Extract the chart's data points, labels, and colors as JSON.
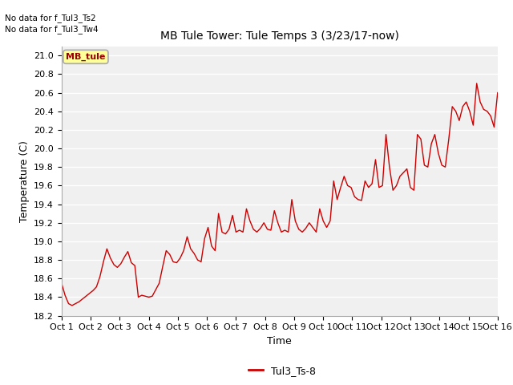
{
  "title": "MB Tule Tower: Tule Temps 3 (3/23/17-now)",
  "xlabel": "Time",
  "ylabel": "Temperature (C)",
  "no_data_text": [
    "No data for f_Tul3_Ts2",
    "No data for f_Tul3_Tw4"
  ],
  "legend_box_label": "MB_tule",
  "legend_box_color": "#ffff99",
  "legend_box_border": "#aaaaaa",
  "line_label": "Tul3_Ts-8",
  "line_color": "#cc0000",
  "plot_bg_color": "#f0f0f0",
  "fig_bg_color": "#ffffff",
  "grid_color": "#ffffff",
  "ylim": [
    18.2,
    21.1
  ],
  "yticks": [
    18.2,
    18.4,
    18.6,
    18.8,
    19.0,
    19.2,
    19.4,
    19.6,
    19.8,
    20.0,
    20.2,
    20.4,
    20.6,
    20.8,
    21.0
  ],
  "xtick_labels": [
    "Oct 1",
    "Oct 2",
    "Oct 3",
    "Oct 4",
    "Oct 5",
    "Oct 6",
    "Oct 7",
    "Oct 8",
    "Oct 9",
    "Oct 10",
    "Oct 11",
    "Oct 12",
    "Oct 13",
    "Oct 14",
    "Oct 15",
    "Oct 16"
  ],
  "x_values": [
    1,
    2,
    3,
    4,
    5,
    6,
    7,
    8,
    9,
    10,
    11,
    12,
    13,
    14,
    15,
    16
  ],
  "y_values": [
    18.55,
    18.42,
    18.33,
    18.31,
    18.33,
    18.35,
    18.38,
    18.41,
    18.44,
    18.47,
    18.51,
    18.62,
    18.78,
    18.92,
    18.82,
    18.75,
    18.72,
    18.76,
    18.83,
    18.89,
    18.77,
    18.74,
    18.4,
    18.42,
    18.41,
    18.4,
    18.41,
    18.48,
    18.55,
    18.73,
    18.9,
    18.86,
    18.78,
    18.77,
    18.82,
    18.9,
    19.05,
    18.92,
    18.87,
    18.8,
    18.78,
    19.03,
    19.15,
    18.95,
    18.9,
    19.3,
    19.1,
    19.08,
    19.13,
    19.28,
    19.1,
    19.12,
    19.1,
    19.35,
    19.22,
    19.13,
    19.1,
    19.14,
    19.2,
    19.13,
    19.12,
    19.33,
    19.2,
    19.1,
    19.12,
    19.1,
    19.45,
    19.22,
    19.13,
    19.1,
    19.14,
    19.2,
    19.15,
    19.1,
    19.35,
    19.22,
    19.15,
    19.22,
    19.65,
    19.45,
    19.58,
    19.7,
    19.6,
    19.58,
    19.48,
    19.45,
    19.44,
    19.65,
    19.58,
    19.62,
    19.88,
    19.58,
    19.6,
    20.15,
    19.8,
    19.55,
    19.6,
    19.7,
    19.74,
    19.78,
    19.58,
    19.55,
    20.15,
    20.1,
    19.82,
    19.8,
    20.05,
    20.15,
    19.95,
    19.82,
    19.8,
    20.1,
    20.45,
    20.4,
    20.3,
    20.45,
    20.5,
    20.4,
    20.25,
    20.7,
    20.5,
    20.42,
    20.4,
    20.35,
    20.23,
    20.6
  ]
}
